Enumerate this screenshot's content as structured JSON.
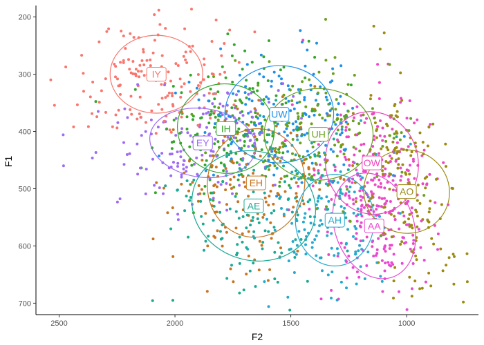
{
  "chart_data": {
    "type": "scatter",
    "title": "",
    "xlabel": "F2",
    "ylabel": "F1",
    "x_reversed": true,
    "y_reversed": true,
    "xlim": [
      2600,
      690
    ],
    "ylim": [
      180,
      720
    ],
    "x_ticks": [
      2500,
      2000,
      1500,
      1000
    ],
    "y_ticks": [
      200,
      300,
      400,
      500,
      600,
      700
    ],
    "grid": false,
    "legend": "none",
    "points_per_vowel": 160,
    "series": [
      {
        "name": "IY",
        "color": "#F8766D",
        "mean_f2": 2080,
        "mean_f1": 300,
        "sd_f2": 170,
        "sd_f1": 55,
        "corr": 0.0,
        "ellipse": {
          "rx": 200,
          "ry": 68,
          "angle": 0
        }
      },
      {
        "name": "EY",
        "color": "#9F6BF5",
        "mean_f2": 1880,
        "mean_f1": 420,
        "sd_f2": 195,
        "sd_f1": 52,
        "corr": 0.15,
        "ellipse": {
          "rx": 230,
          "ry": 60,
          "angle": 8
        }
      },
      {
        "name": "IH",
        "color": "#34A62C",
        "mean_f2": 1780,
        "mean_f1": 395,
        "sd_f2": 180,
        "sd_f1": 65,
        "corr": 0.2,
        "ellipse": {
          "rx": 210,
          "ry": 78,
          "angle": 10
        }
      },
      {
        "name": "EH",
        "color": "#C8741F",
        "mean_f2": 1650,
        "mean_f1": 490,
        "sd_f2": 175,
        "sd_f1": 75,
        "corr": 0.15,
        "ellipse": {
          "rx": 210,
          "ry": 95,
          "angle": 8
        }
      },
      {
        "name": "AE",
        "color": "#1BAA94",
        "mean_f2": 1660,
        "mean_f1": 530,
        "sd_f2": 215,
        "sd_f1": 85,
        "corr": 0.35,
        "ellipse": {
          "rx": 270,
          "ry": 95,
          "angle": 18
        }
      },
      {
        "name": "UW",
        "color": "#1E90E8",
        "mean_f2": 1550,
        "mean_f1": 370,
        "sd_f2": 190,
        "sd_f1": 60,
        "corr": -0.05,
        "ellipse": {
          "rx": 235,
          "ry": 85,
          "angle": -3
        }
      },
      {
        "name": "UH",
        "color": "#68A11A",
        "mean_f2": 1380,
        "mean_f1": 405,
        "sd_f2": 200,
        "sd_f1": 62,
        "corr": 0.0,
        "ellipse": {
          "rx": 235,
          "ry": 80,
          "angle": 0
        }
      },
      {
        "name": "OW",
        "color": "#EF47C2",
        "mean_f2": 1150,
        "mean_f1": 455,
        "sd_f2": 165,
        "sd_f1": 70,
        "corr": -0.2,
        "ellipse": {
          "rx": 200,
          "ry": 90,
          "angle": -12
        }
      },
      {
        "name": "AH",
        "color": "#24AACF",
        "mean_f2": 1310,
        "mean_f1": 555,
        "sd_f2": 140,
        "sd_f1": 62,
        "corr": 0.0,
        "ellipse": {
          "rx": 170,
          "ry": 80,
          "angle": 0
        }
      },
      {
        "name": "AO",
        "color": "#9C8B0F",
        "mean_f2": 1000,
        "mean_f1": 505,
        "sd_f2": 110,
        "sd_f1": 85,
        "corr": -0.3,
        "ellipse": {
          "rx": 180,
          "ry": 75,
          "angle": -70
        }
      },
      {
        "name": "AA",
        "color": "#E948D3",
        "mean_f2": 1140,
        "mean_f1": 565,
        "sd_f2": 130,
        "sd_f1": 75,
        "corr": -0.1,
        "ellipse": {
          "rx": 170,
          "ry": 95,
          "angle": -20
        }
      }
    ]
  }
}
